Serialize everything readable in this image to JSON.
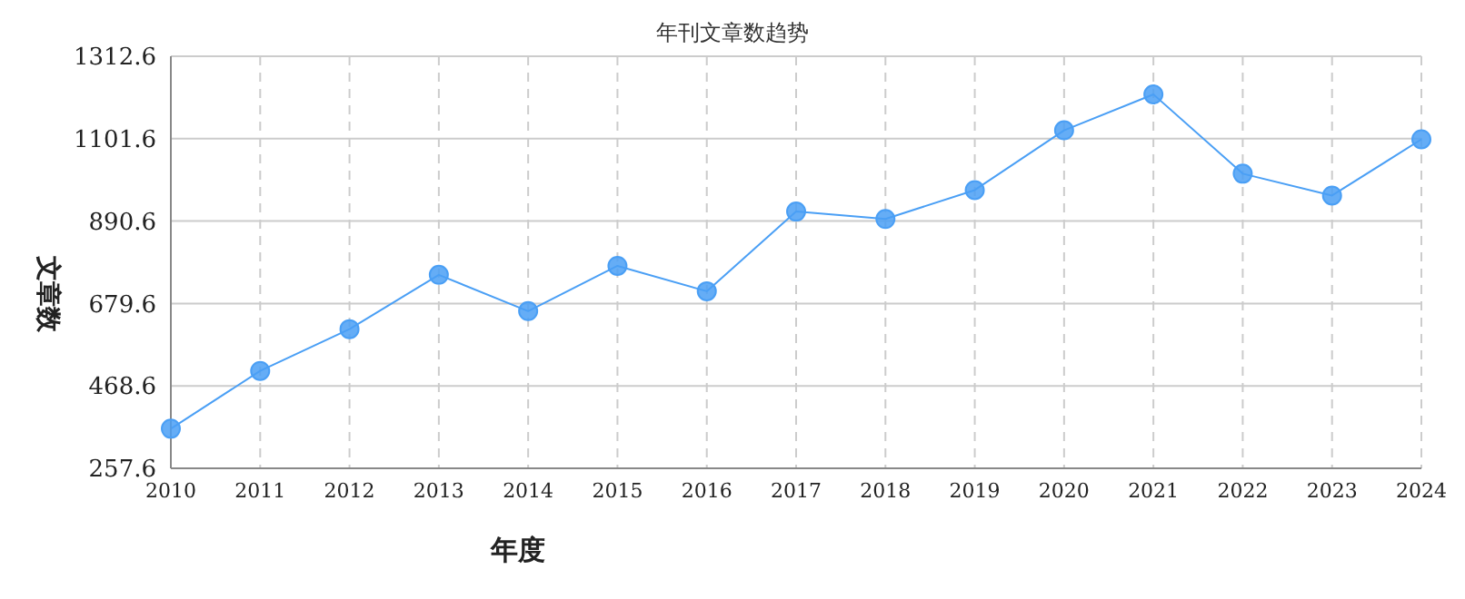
{
  "chart_data": {
    "type": "line",
    "title": "年刊文章数趋势",
    "xlabel": "年度",
    "ylabel": "文章数",
    "categories": [
      "2010",
      "2011",
      "2012",
      "2013",
      "2014",
      "2015",
      "2016",
      "2017",
      "2018",
      "2019",
      "2020",
      "2021",
      "2022",
      "2023",
      "2024"
    ],
    "series": [
      {
        "color": "#4a9ff5",
        "values": [
          359,
          507,
          614,
          753,
          660,
          776,
          711,
          915,
          896,
          970,
          1123,
          1215,
          1012,
          956,
          1100
        ]
      }
    ],
    "ylim": [
      257.6,
      1312.6
    ],
    "yticks": [
      257.6,
      468.6,
      679.6,
      890.6,
      1101.6,
      1312.6
    ],
    "grid": true,
    "marker": "circle",
    "line_style": "solid"
  }
}
